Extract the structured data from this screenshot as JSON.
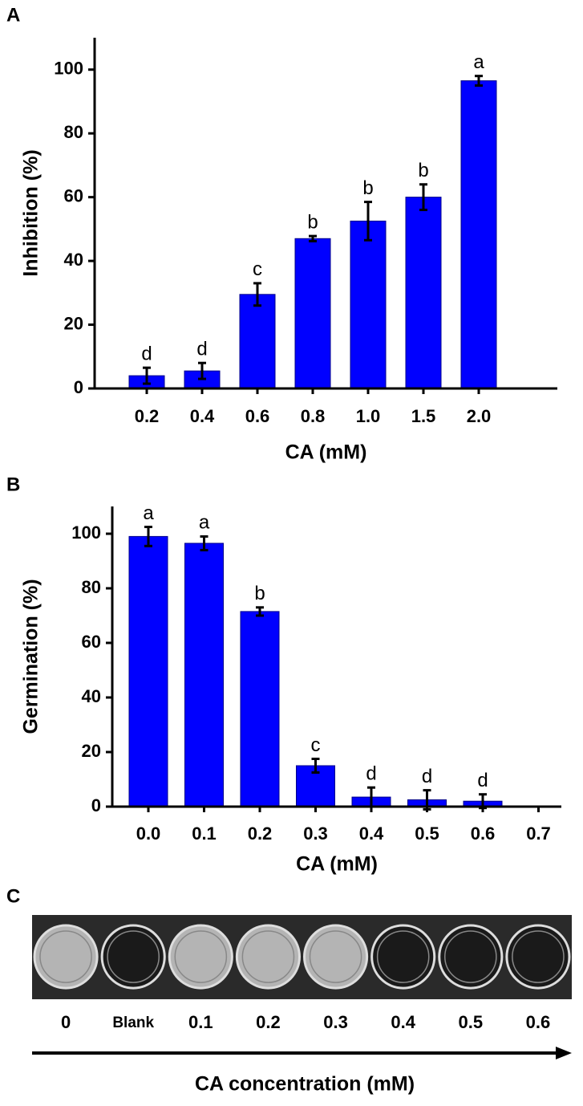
{
  "chart_data": [
    {
      "type": "bar",
      "panel_label": "A",
      "x_label": "CA (mM)",
      "y_label": "Inhibition (%)",
      "categories": [
        "0.2",
        "0.4",
        "0.6",
        "0.8",
        "1.0",
        "1.5",
        "2.0"
      ],
      "values": [
        4,
        5.5,
        29.5,
        47,
        52.5,
        60,
        96.5
      ],
      "errors": [
        2.5,
        2.5,
        3.5,
        0.8,
        6,
        4,
        1.5
      ],
      "letters": [
        "d",
        "d",
        "c",
        "b",
        "b",
        "b",
        "a"
      ],
      "color": "#0000ff",
      "ylim": [
        0,
        110
      ],
      "yticks": [
        0,
        20,
        40,
        60,
        80,
        100
      ]
    },
    {
      "type": "bar",
      "panel_label": "B",
      "x_label": "CA (mM)",
      "y_label": "Germination (%)",
      "categories": [
        "0.0",
        "0.1",
        "0.2",
        "0.3",
        "0.4",
        "0.5",
        "0.6",
        "0.7"
      ],
      "values": [
        99,
        96.5,
        71.5,
        15,
        3.5,
        2.5,
        2,
        null
      ],
      "errors": [
        3.5,
        2.5,
        1.5,
        2.5,
        3.5,
        3.5,
        2.5,
        null
      ],
      "letters": [
        "a",
        "a",
        "b",
        "c",
        "d",
        "d",
        "d",
        null
      ],
      "color": "#0000ff",
      "ylim": [
        0,
        110
      ],
      "yticks": [
        0,
        20,
        40,
        60,
        80,
        100
      ]
    }
  ],
  "panel_c": {
    "label": "C",
    "wells": [
      "0",
      "Blank",
      "0.1",
      "0.2",
      "0.3",
      "0.4",
      "0.5",
      "0.6"
    ],
    "axis_label": "CA concentration (mM)"
  }
}
